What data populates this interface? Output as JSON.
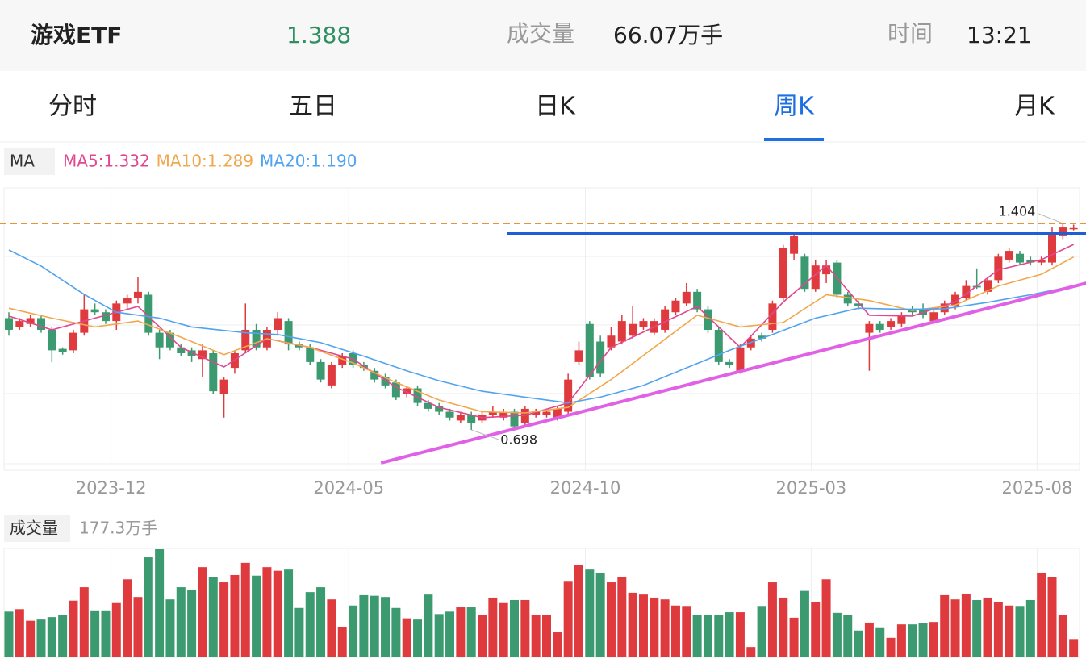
{
  "header": {
    "name": "游戏ETF",
    "price": 1.388,
    "volume_label": "成交量",
    "volume": "66.07万手",
    "time_label": "时间",
    "time": "13:21"
  },
  "tabs": [
    "分时",
    "五日",
    "日K",
    "周K",
    "月K"
  ],
  "active_tab": 3,
  "chart_data": {
    "type": "candlestick",
    "up_color": "#df3b3f",
    "down_color": "#3b9a6f",
    "xlim": [
      -0.45,
      99.55
    ],
    "xticks": [
      {
        "value": 9.5,
        "label": "2023-12"
      },
      {
        "value": 31.6,
        "label": "2024-05"
      },
      {
        "value": 53.6,
        "label": "2024-10"
      },
      {
        "value": 74.6,
        "label": "2025-03"
      },
      {
        "value": 95.6,
        "label": "2025-08"
      }
    ],
    "ylim": [
      0.5822,
      1.5253
    ],
    "ma_label": "MA",
    "open": [
      1.08,
      1.05,
      1.06,
      1.08,
      1.04,
      0.975,
      0.97,
      1.03,
      1.11,
      1.1,
      1.07,
      1.13,
      1.15,
      1.16,
      1.03,
      1.03,
      0.98,
      0.97,
      0.94,
      0.96,
      0.82,
      0.91,
      0.97,
      1.04,
      0.98,
      1.04,
      1.07,
      0.99,
      0.98,
      0.93,
      0.85,
      0.92,
      0.96,
      0.92,
      0.9,
      0.88,
      0.86,
      0.82,
      0.84,
      0.79,
      0.78,
      0.76,
      0.73,
      0.75,
      0.73,
      0.75,
      0.74,
      0.76,
      0.72,
      0.75,
      0.75,
      0.74,
      0.76,
      0.93,
      1.06,
      1.0,
      0.98,
      1.0,
      1.02,
      1.05,
      1.03,
      1.04,
      1.1,
      1.13,
      1.17,
      1.11,
      1.04,
      0.93,
      0.9,
      0.98,
      1.02,
      1.04,
      1.15,
      1.3,
      1.29,
      1.18,
      1.23,
      1.27,
      1.16,
      1.13,
      1.03,
      1.06,
      1.05,
      1.06,
      1.11,
      1.11,
      1.07,
      1.1,
      1.12,
      1.15,
      1.19,
      1.17,
      1.21,
      1.28,
      1.3,
      1.28,
      1.27,
      1.27,
      1.36,
      1.385
    ],
    "high": [
      1.1,
      1.08,
      1.09,
      1.09,
      1.05,
      0.98,
      1.04,
      1.16,
      1.13,
      1.11,
      1.14,
      1.16,
      1.22,
      1.17,
      1.04,
      1.04,
      0.99,
      0.98,
      0.99,
      0.97,
      0.88,
      0.97,
      1.13,
      1.06,
      1.05,
      1.1,
      1.08,
      1.0,
      0.99,
      0.94,
      0.93,
      0.96,
      0.97,
      0.93,
      0.91,
      0.89,
      0.87,
      0.85,
      0.85,
      0.8,
      0.79,
      0.77,
      0.76,
      0.76,
      0.76,
      0.78,
      0.77,
      0.77,
      0.78,
      0.77,
      0.77,
      0.78,
      0.89,
      1.0,
      1.07,
      1.02,
      1.05,
      1.09,
      1.12,
      1.08,
      1.08,
      1.12,
      1.15,
      1.2,
      1.18,
      1.12,
      1.05,
      0.94,
      0.99,
      1.02,
      1.03,
      1.14,
      1.33,
      1.37,
      1.3,
      1.28,
      1.28,
      1.28,
      1.17,
      1.14,
      1.07,
      1.07,
      1.08,
      1.1,
      1.12,
      1.13,
      1.11,
      1.14,
      1.17,
      1.21,
      1.25,
      1.22,
      1.3,
      1.32,
      1.31,
      1.29,
      1.29,
      1.39,
      1.404,
      1.4
    ],
    "low": [
      1.02,
      1.04,
      1.05,
      1.03,
      0.93,
      0.955,
      0.96,
      1.02,
      1.09,
      1.06,
      1.04,
      1.11,
      1.13,
      1.02,
      0.94,
      0.97,
      0.95,
      0.93,
      0.88,
      0.82,
      0.74,
      0.89,
      0.96,
      0.97,
      0.97,
      1.02,
      0.97,
      0.97,
      0.92,
      0.86,
      0.84,
      0.91,
      0.91,
      0.9,
      0.86,
      0.84,
      0.8,
      0.81,
      0.78,
      0.76,
      0.75,
      0.73,
      0.72,
      0.698,
      0.72,
      0.74,
      0.73,
      0.7,
      0.71,
      0.74,
      0.74,
      0.73,
      0.75,
      0.92,
      0.87,
      0.88,
      0.97,
      0.99,
      1.01,
      1.04,
      1.02,
      1.03,
      1.09,
      1.12,
      1.1,
      1.03,
      0.92,
      0.91,
      0.89,
      0.97,
      1.0,
      1.03,
      1.14,
      1.28,
      1.17,
      1.17,
      1.2,
      1.15,
      1.12,
      1.11,
      0.9,
      1.03,
      1.04,
      1.05,
      1.09,
      1.08,
      1.06,
      1.09,
      1.11,
      1.14,
      1.18,
      1.16,
      1.2,
      1.27,
      1.26,
      1.26,
      1.26,
      1.26,
      1.35,
      1.38
    ],
    "close": [
      1.04,
      1.07,
      1.08,
      1.04,
      0.97,
      0.965,
      1.03,
      1.11,
      1.1,
      1.07,
      1.13,
      1.15,
      1.17,
      1.03,
      0.98,
      0.98,
      0.96,
      0.95,
      0.97,
      0.83,
      0.87,
      0.96,
      1.04,
      0.98,
      1.04,
      1.08,
      0.99,
      0.98,
      0.93,
      0.87,
      0.92,
      0.95,
      0.92,
      0.91,
      0.87,
      0.85,
      0.81,
      0.84,
      0.79,
      0.77,
      0.76,
      0.74,
      0.75,
      0.72,
      0.75,
      0.76,
      0.76,
      0.71,
      0.77,
      0.76,
      0.76,
      0.77,
      0.87,
      0.97,
      0.88,
      0.89,
      1.02,
      1.07,
      1.06,
      1.07,
      1.07,
      1.11,
      1.14,
      1.17,
      1.11,
      1.04,
      0.93,
      0.92,
      0.98,
      1.01,
      1.01,
      1.13,
      1.32,
      1.36,
      1.18,
      1.26,
      1.26,
      1.16,
      1.13,
      1.12,
      1.06,
      1.04,
      1.07,
      1.09,
      1.1,
      1.09,
      1.1,
      1.13,
      1.16,
      1.19,
      1.185,
      1.21,
      1.29,
      1.31,
      1.27,
      1.27,
      1.28,
      1.37,
      1.39,
      1.388
    ],
    "ma_series": [
      {
        "name": "MA5:1.332",
        "color": "#e0478f",
        "x": [
          0,
          4,
          8,
          12,
          16,
          20,
          24,
          28,
          32,
          36,
          40,
          44,
          48,
          52,
          56,
          60,
          64,
          68,
          72,
          76,
          80,
          84,
          88,
          92,
          96,
          99
        ],
        "values": [
          1.087,
          1.04,
          1.08,
          1.12,
          0.98,
          0.913,
          1.01,
          0.98,
          0.94,
          0.844,
          0.775,
          0.74,
          0.748,
          0.79,
          0.98,
          1.05,
          1.12,
          0.98,
          1.135,
          1.26,
          1.09,
          1.087,
          1.135,
          1.245,
          1.28,
          1.332
        ]
      },
      {
        "name": "MA10:1.289",
        "color": "#f0a84e",
        "x": [
          0,
          4,
          8,
          12,
          16,
          20,
          24,
          28,
          32,
          36,
          40,
          44,
          48,
          52,
          56,
          60,
          64,
          68,
          72,
          76,
          80,
          84,
          88,
          92,
          96,
          99
        ],
        "values": [
          1.114,
          1.08,
          1.05,
          1.07,
          1.015,
          0.955,
          1.01,
          0.98,
          0.927,
          0.86,
          0.8,
          0.76,
          0.756,
          0.775,
          0.87,
          0.98,
          1.09,
          1.05,
          1.065,
          1.16,
          1.14,
          1.106,
          1.125,
          1.19,
          1.23,
          1.289
        ]
      },
      {
        "name": "MA20:1.190",
        "color": "#4fa3ef",
        "x": [
          0,
          3,
          7,
          10,
          14,
          17,
          22,
          25,
          29,
          33,
          37,
          40,
          44,
          48,
          52,
          55,
          59,
          63,
          67,
          71,
          75,
          79,
          83,
          87,
          91,
          95,
          99
        ],
        "values": [
          1.313,
          1.258,
          1.161,
          1.1,
          1.08,
          1.05,
          1.03,
          1.024,
          0.996,
          0.95,
          0.9,
          0.866,
          0.83,
          0.81,
          0.79,
          0.81,
          0.85,
          0.91,
          0.97,
          1.024,
          1.08,
          1.114,
          1.11,
          1.112,
          1.134,
          1.16,
          1.19
        ]
      }
    ],
    "max_label": 1.404,
    "min_label": 0.698,
    "trend_lines": [
      {
        "color": "#1f5fd6",
        "x": [
          46.3,
          100.2
        ],
        "values": [
          1.368,
          1.368
        ]
      },
      {
        "color": "#e061e6",
        "x": [
          34.6,
          100.2
        ],
        "values": [
          0.585,
          1.2
        ]
      }
    ],
    "volume_label": "成交量",
    "volume_max_label": "177.3万手",
    "volume_ylim": [
      0,
      177.3
    ],
    "volume": [
      75,
      79,
      60,
      62,
      66,
      69,
      93,
      115,
      77,
      77,
      89,
      128,
      99,
      164,
      177.3,
      95,
      115,
      111,
      148,
      132,
      123,
      135,
      155,
      134,
      148,
      142,
      144,
      81,
      107,
      115,
      95,
      50,
      85,
      102,
      101,
      99,
      81,
      64,
      62,
      103,
      71,
      75,
      82,
      82,
      70,
      98,
      89,
      94,
      94,
      70,
      70,
      41,
      124,
      152,
      144,
      138,
      123,
      131,
      106,
      103,
      98,
      95,
      85,
      83,
      70,
      69,
      70,
      74,
      74,
      17,
      83,
      123,
      98,
      65,
      109,
      90,
      128,
      73,
      70,
      44,
      57,
      48,
      32,
      54,
      54,
      56,
      58,
      102,
      95,
      104,
      94,
      98,
      91,
      85,
      83,
      94,
      139,
      131,
      70,
      30
    ]
  }
}
